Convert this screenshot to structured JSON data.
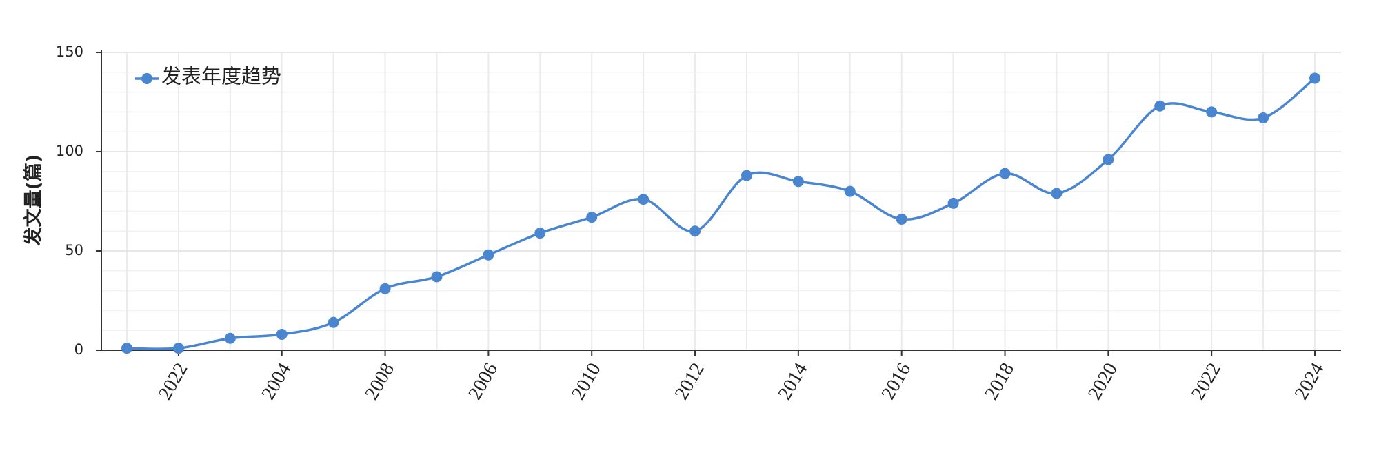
{
  "chart_data": {
    "type": "line",
    "y_label": "发文量(篇)",
    "categories": [
      null,
      "2022",
      null,
      "2004",
      null,
      "2008",
      null,
      "2006",
      null,
      "2010",
      null,
      "2012",
      null,
      "2014",
      null,
      "2016",
      null,
      "2018",
      null,
      "2020",
      null,
      "2022",
      null,
      "2024"
    ],
    "series": [
      {
        "name": "发表年度趋势",
        "color": "#4a86d0",
        "values": [
          1,
          1,
          6,
          8,
          14,
          31,
          37,
          48,
          59,
          67,
          76,
          60,
          88,
          85,
          80,
          66,
          74,
          89,
          79,
          96,
          123,
          120,
          117,
          137
        ]
      }
    ],
    "ylim": [
      0,
      150
    ],
    "yticks": [
      0,
      50,
      100,
      150
    ],
    "grid": true,
    "minor_grid_step": 10,
    "smooth": true,
    "legend": "upper left"
  }
}
